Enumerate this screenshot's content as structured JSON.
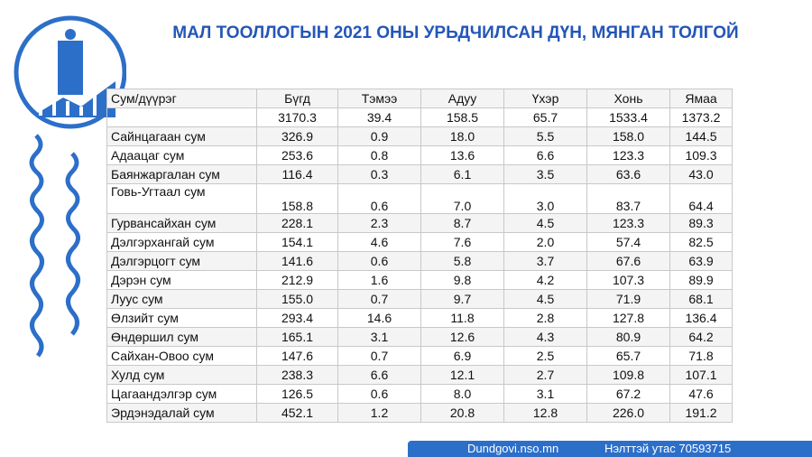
{
  "header": {
    "title": "МАЛ ТООЛЛОГЫН 2021 ОНЫ УРЬДЧИЛСАН ДҮН, МЯНГАН ТОЛГОЙ"
  },
  "table": {
    "columns": [
      "Сум/дүүрэг",
      "Бүгд",
      "Тэмээ",
      "Адуу",
      "Үхэр",
      "Хонь",
      "Ямаа"
    ],
    "rows": [
      {
        "values": [
          "3170.3",
          "39.4",
          "158.5",
          "65.7",
          "1533.4",
          "1373.2"
        ]
      },
      {
        "name": "Сайнцагаан сум",
        "values": [
          "326.9",
          "0.9",
          "18.0",
          "5.5",
          "158.0",
          "144.5"
        ]
      },
      {
        "name": "Адаацаг сум",
        "values": [
          "253.6",
          "0.8",
          "13.6",
          "6.6",
          "123.3",
          "109.3"
        ]
      },
      {
        "name": "Баянжаргалан сум",
        "values": [
          "116.4",
          "0.3",
          "6.1",
          "3.5",
          "63.6",
          "43.0"
        ]
      },
      {
        "name": "Говь-Угтаал сум",
        "values": [
          "158.8",
          "0.6",
          "7.0",
          "3.0",
          "83.7",
          "64.4"
        ]
      },
      {
        "name": "Гурвансайхан сум",
        "values": [
          "228.1",
          "2.3",
          "8.7",
          "4.5",
          "123.3",
          "89.3"
        ]
      },
      {
        "name": "Дэлгэрхангай сум",
        "values": [
          "154.1",
          "4.6",
          "7.6",
          "2.0",
          "57.4",
          "82.5"
        ]
      },
      {
        "name": "Дэлгэрцогт сум",
        "values": [
          "141.6",
          "0.6",
          "5.8",
          "3.7",
          "67.6",
          "63.9"
        ]
      },
      {
        "name": "Дэрэн сум",
        "values": [
          "212.9",
          "1.6",
          "9.8",
          "4.2",
          "107.3",
          "89.9"
        ]
      },
      {
        "name": "Луус сум",
        "values": [
          "155.0",
          "0.7",
          "9.7",
          "4.5",
          "71.9",
          "68.1"
        ]
      },
      {
        "name": "Өлзийт сум",
        "values": [
          "293.4",
          "14.6",
          "11.8",
          "2.8",
          "127.8",
          "136.4"
        ]
      },
      {
        "name": "Өндөршил сум",
        "values": [
          "165.1",
          "3.1",
          "12.6",
          "4.3",
          "80.9",
          "64.2"
        ]
      },
      {
        "name": "Сайхан-Овоо сум",
        "values": [
          "147.6",
          "0.7",
          "6.9",
          "2.5",
          "65.7",
          "71.8"
        ]
      },
      {
        "name": "Хулд сум",
        "values": [
          "238.3",
          "6.6",
          "12.1",
          "2.7",
          "109.8",
          "107.1"
        ]
      },
      {
        "name": "Цагаандэлгэр сум",
        "values": [
          "126.5",
          "0.6",
          "8.0",
          "3.1",
          "67.2",
          "47.6"
        ]
      },
      {
        "name": "Эрдэнэдалай сум",
        "values": [
          "452.1",
          "1.2",
          "20.8",
          "12.8",
          "226.0",
          "191.2"
        ]
      }
    ]
  },
  "footer": {
    "website": "Dundgovi.nso.mn",
    "phone": "Нэлттэй утас 70593715"
  }
}
